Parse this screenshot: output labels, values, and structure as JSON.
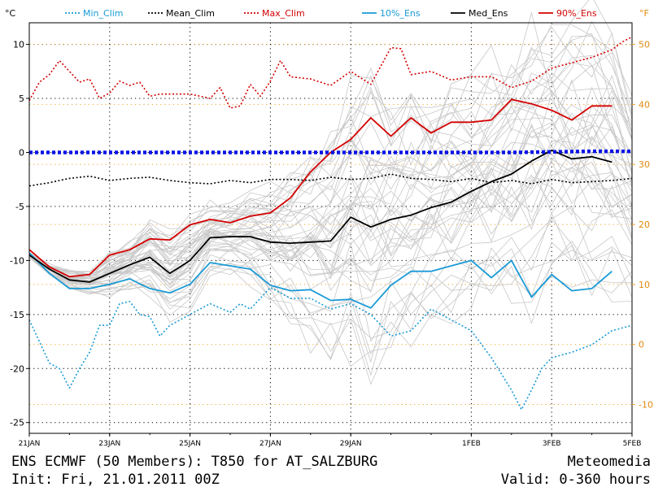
{
  "chart_data": {
    "type": "line",
    "title": "ENS ECMWF (50 Members): T850 for AT_SALZBURG",
    "ylabel_left": "°C",
    "ylabel_right": "°F",
    "ylim": [
      -26,
      12
    ],
    "ylim_f": [
      -14.8,
      53.6
    ],
    "y_ticks": [
      -25,
      -20,
      -15,
      -10,
      -5,
      0,
      5,
      10
    ],
    "y_ticks_f": [
      -10,
      0,
      10,
      20,
      30,
      40,
      50
    ],
    "x_range_days": [
      0,
      15
    ],
    "x_ticks": [
      {
        "day": 0,
        "label": "21JAN"
      },
      {
        "day": 2,
        "label": "23JAN"
      },
      {
        "day": 4,
        "label": "25JAN"
      },
      {
        "day": 6,
        "label": "27JAN"
      },
      {
        "day": 8,
        "label": "29JAN"
      },
      {
        "day": 11,
        "label": "1FEB"
      },
      {
        "day": 13,
        "label": "3FEB"
      },
      {
        "day": 15,
        "label": "5FEB"
      }
    ],
    "legend": [
      {
        "label": "Min_Clim",
        "color": "#1a9ad6",
        "style": "dotted"
      },
      {
        "label": "Mean_Clim",
        "color": "#000000",
        "style": "dotted"
      },
      {
        "label": "Max_Clim",
        "color": "#d40000",
        "style": "dotted"
      },
      {
        "label": "10%_Ens",
        "color": "#1a9ad6",
        "style": "solid"
      },
      {
        "label": "Med_Ens",
        "color": "#000000",
        "style": "solid"
      },
      {
        "label": "90%_Ens",
        "color": "#d40000",
        "style": "solid"
      }
    ],
    "series": [
      {
        "name": "Min_Clim",
        "color": "#1a9ad6",
        "style": "dotted",
        "width": 1.6,
        "x": [
          0,
          0.25,
          0.5,
          0.75,
          1,
          1.25,
          1.5,
          1.75,
          2,
          2.25,
          2.5,
          2.75,
          3,
          3.25,
          3.5,
          3.75,
          4,
          4.5,
          5,
          5.25,
          5.5,
          6,
          6.5,
          7,
          7.5,
          8,
          8.5,
          9,
          9.5,
          10,
          10.5,
          11,
          11.5,
          12,
          12.25,
          12.5,
          12.75,
          13,
          13.5,
          14,
          14.5,
          15
        ],
        "y": [
          -15.5,
          -17.5,
          -19.5,
          -20,
          -21.8,
          -20,
          -18.5,
          -16,
          -16,
          -14,
          -13.8,
          -15,
          -15.2,
          -17,
          -16,
          -15.5,
          -15,
          -14,
          -14.8,
          -14,
          -14.5,
          -12.5,
          -13.5,
          -13.5,
          -14.5,
          -14,
          -15,
          -17,
          -16.5,
          -14.5,
          -15.5,
          -16.5,
          -19,
          -22,
          -23.8,
          -22,
          -20,
          -19,
          -18.5,
          -17.8,
          -16.5,
          -16
        ]
      },
      {
        "name": "Mean_Clim",
        "color": "#000000",
        "style": "dotted",
        "width": 1.6,
        "x": [
          0,
          0.5,
          1,
          1.5,
          2,
          2.5,
          3,
          3.5,
          4,
          4.5,
          5,
          5.5,
          6,
          6.5,
          7,
          7.5,
          8,
          8.5,
          9,
          9.5,
          10,
          10.5,
          11,
          11.5,
          12,
          12.5,
          13,
          13.5,
          14,
          14.5,
          15
        ],
        "y": [
          -3.1,
          -2.8,
          -2.4,
          -2.2,
          -2.6,
          -2.4,
          -2.3,
          -2.6,
          -2.8,
          -2.9,
          -2.6,
          -2.8,
          -2.5,
          -2.5,
          -2.6,
          -2.3,
          -2.5,
          -2.4,
          -2.0,
          -2.4,
          -2.5,
          -2.7,
          -2.4,
          -2.8,
          -2.6,
          -2.9,
          -2.5,
          -2.8,
          -2.7,
          -2.6,
          -2.4
        ]
      },
      {
        "name": "Max_Clim",
        "color": "#d40000",
        "style": "dotted",
        "width": 1.6,
        "x": [
          0,
          0.25,
          0.5,
          0.75,
          1,
          1.25,
          1.5,
          1.75,
          2,
          2.25,
          2.5,
          2.75,
          3,
          3.25,
          3.5,
          4,
          4.5,
          4.75,
          5,
          5.25,
          5.5,
          5.75,
          6,
          6.25,
          6.5,
          7,
          7.5,
          8,
          8.5,
          9,
          9.25,
          9.5,
          10,
          10.5,
          11,
          11.5,
          12,
          12.5,
          13,
          13.5,
          14,
          14.5,
          14.75,
          15
        ],
        "y": [
          4.8,
          6.5,
          7.2,
          8.5,
          7.5,
          6.5,
          6.8,
          5,
          5.5,
          6.6,
          6.2,
          6.5,
          5.2,
          5.4,
          5.4,
          5.4,
          5.0,
          6.0,
          4.1,
          4.3,
          6.3,
          5.2,
          6.6,
          8.5,
          7.0,
          6.8,
          6.2,
          7.5,
          6.3,
          9.7,
          9.6,
          7.2,
          7.5,
          6.7,
          7.0,
          7.0,
          6.0,
          6.6,
          7.8,
          8.3,
          8.8,
          9.5,
          10.2,
          10.7
        ]
      },
      {
        "name": "10%_Ens",
        "color": "#1a9ad6",
        "style": "solid",
        "width": 1.8,
        "x": [
          0,
          0.5,
          1,
          1.5,
          2,
          2.5,
          3,
          3.5,
          4,
          4.5,
          5,
          5.5,
          6,
          6.5,
          7,
          7.5,
          8,
          8.5,
          9,
          9.5,
          10,
          10.5,
          11,
          11.5,
          12,
          12.5,
          13,
          13.5,
          14,
          14.5
        ],
        "y": [
          -9.3,
          -11.2,
          -12.6,
          -12.6,
          -12.2,
          -11.7,
          -12.6,
          -13.0,
          -12.2,
          -10.2,
          -10.5,
          -10.8,
          -12.3,
          -12.8,
          -12.7,
          -13.7,
          -13.6,
          -14.4,
          -12.3,
          -11.0,
          -11.0,
          -10.5,
          -10.0,
          -11.6,
          -10.0,
          -13.4,
          -11.3,
          -12.8,
          -12.6,
          -11.0
        ]
      },
      {
        "name": "Med_Ens",
        "color": "#000000",
        "style": "solid",
        "width": 1.8,
        "x": [
          0,
          0.5,
          1,
          1.5,
          2,
          2.5,
          3,
          3.5,
          4,
          4.5,
          5,
          5.5,
          6,
          6.5,
          7,
          7.5,
          8,
          8.5,
          9,
          9.5,
          10,
          10.5,
          11,
          11.5,
          12,
          12.5,
          13,
          13.5,
          14,
          14.5
        ],
        "y": [
          -9.5,
          -10.8,
          -11.8,
          -12.0,
          -11.2,
          -10.4,
          -9.7,
          -11.2,
          -10.0,
          -7.9,
          -7.8,
          -7.8,
          -8.3,
          -8.4,
          -8.3,
          -8.2,
          -6.0,
          -6.9,
          -6.2,
          -5.8,
          -5.1,
          -4.6,
          -3.6,
          -2.7,
          -2.0,
          -0.8,
          0.2,
          -0.6,
          -0.4,
          -0.9
        ]
      },
      {
        "name": "90%_Ens",
        "color": "#d40000",
        "style": "solid",
        "width": 1.8,
        "x": [
          0,
          0.5,
          1,
          1.5,
          2,
          2.5,
          3,
          3.5,
          4,
          4.5,
          5,
          5.5,
          6,
          6.5,
          7,
          7.5,
          8,
          8.5,
          9,
          9.5,
          10,
          10.5,
          11,
          11.5,
          12,
          12.5,
          13,
          13.5,
          14,
          14.5
        ],
        "y": [
          -9.0,
          -10.6,
          -11.5,
          -11.3,
          -9.5,
          -9.0,
          -8.0,
          -8.1,
          -6.7,
          -6.2,
          -6.5,
          -5.9,
          -5.6,
          -4.2,
          -1.8,
          0.0,
          1.2,
          3.2,
          1.5,
          3.2,
          1.8,
          2.8,
          2.8,
          3.0,
          4.9,
          4.5,
          3.9,
          3.0,
          4.3,
          4.3
        ]
      },
      {
        "name": "Ctrl_Det",
        "color": "#0a14e6",
        "style": "dotted-thick",
        "width": 4.5,
        "x": [
          0,
          1,
          2,
          3,
          4,
          5,
          6,
          7,
          8,
          9,
          10,
          11,
          12,
          13,
          14,
          15
        ],
        "y": [
          0.0,
          0.0,
          0.0,
          0.0,
          0.0,
          0.0,
          0.0,
          0.0,
          0.0,
          0.0,
          0.0,
          0.0,
          0.0,
          0.05,
          0.1,
          0.1
        ]
      }
    ]
  },
  "footer": {
    "title": "ENS ECMWF (50 Members): T850 for AT_SALZBURG",
    "init": "Init: Fri, 21.01.2011 00Z",
    "brand": "Meteomedia",
    "valid": "Valid: 0-360 hours"
  }
}
